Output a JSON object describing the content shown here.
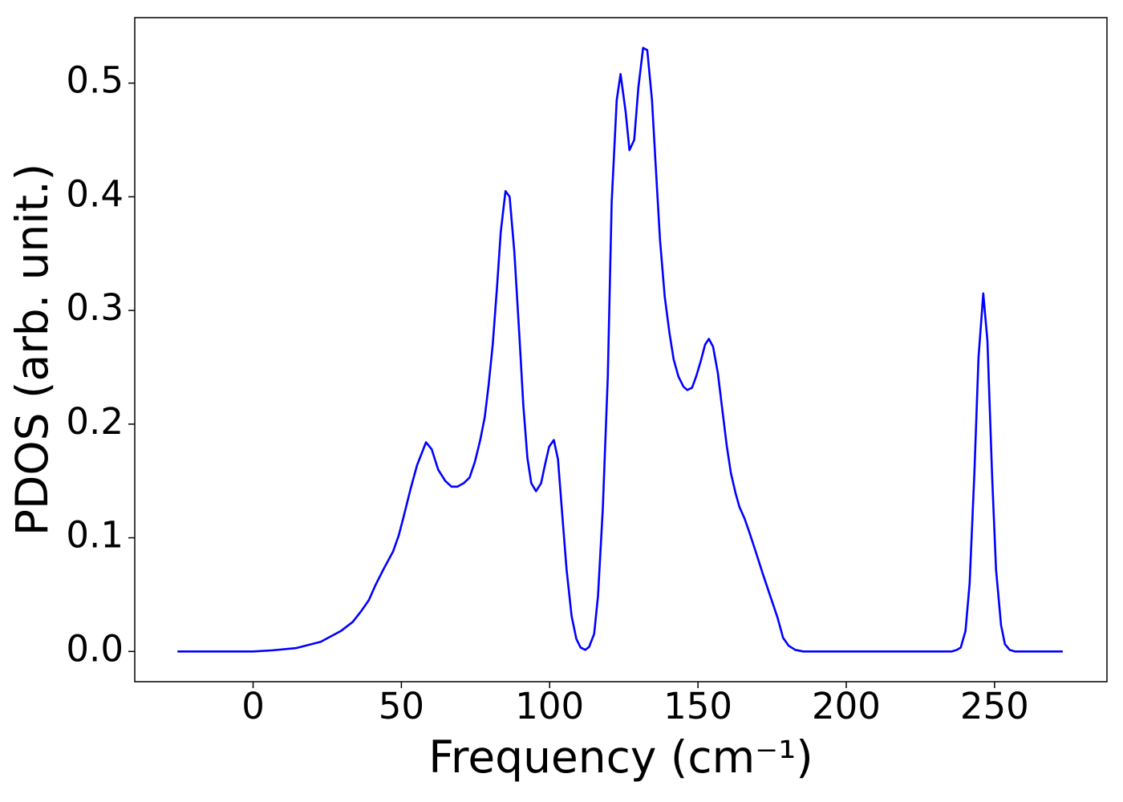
{
  "chart_data": {
    "type": "line",
    "xlabel": "Frequency (cm⁻¹)",
    "ylabel": "PDOS (arb. unit.)",
    "xlim": [
      -39.9,
      287.9
    ],
    "ylim": [
      -0.0266,
      0.5576
    ],
    "xticks": [
      0,
      50,
      100,
      150,
      200,
      250
    ],
    "yticks": [
      {
        "value": 0,
        "label": "0.0"
      },
      0.1,
      0.2,
      0.3,
      0.4,
      0.5
    ],
    "grid": false,
    "x": [
      -25.5,
      0,
      6.5,
      14.6,
      22.8,
      29.6,
      33.6,
      36.3,
      39.0,
      41.2,
      43.9,
      47.2,
      49.1,
      50.7,
      53.1,
      55.3,
      58.3,
      60.2,
      62.4,
      64.8,
      66.9,
      68.9,
      71.0,
      73.0,
      74.8,
      76.5,
      78.1,
      79.4,
      80.8,
      82.2,
      83.5,
      85.1,
      86.5,
      88.1,
      89.8,
      91.1,
      92.5,
      93.8,
      95.4,
      97.1,
      98.4,
      99.8,
      101.4,
      102.8,
      104.1,
      105.7,
      107.4,
      109.0,
      110.4,
      112.0,
      113.3,
      115.0,
      116.3,
      117.9,
      119.6,
      120.9,
      122.6,
      123.9,
      125.6,
      126.9,
      128.5,
      129.9,
      131.5,
      132.9,
      134.5,
      135.8,
      137.2,
      138.8,
      140.4,
      141.8,
      143.4,
      145.1,
      146.4,
      148.0,
      149.4,
      151.0,
      152.4,
      153.7,
      155.1,
      156.7,
      158.1,
      159.7,
      161.1,
      162.7,
      164.0,
      165.7,
      167.3,
      169.2,
      171.9,
      174.6,
      176.8,
      178.7,
      180.6,
      182.8,
      185.5,
      235.6,
      237.3,
      238.6,
      240.2,
      241.6,
      243.2,
      244.6,
      246.2,
      247.6,
      249.2,
      250.5,
      252.2,
      253.5,
      255.1,
      256.8,
      273.0
    ],
    "series": [
      {
        "name": "PDOS",
        "color": "#0000ff",
        "values": [
          0,
          0,
          0.001,
          0.003,
          0.0085,
          0.018,
          0.026,
          0.035,
          0.045,
          0.058,
          0.072,
          0.088,
          0.102,
          0.118,
          0.143,
          0.164,
          0.184,
          0.178,
          0.16,
          0.15,
          0.145,
          0.145,
          0.148,
          0.153,
          0.167,
          0.185,
          0.206,
          0.234,
          0.27,
          0.319,
          0.369,
          0.405,
          0.4,
          0.351,
          0.277,
          0.217,
          0.17,
          0.148,
          0.141,
          0.148,
          0.164,
          0.18,
          0.186,
          0.169,
          0.125,
          0.072,
          0.031,
          0.011,
          0.0035,
          0.0014,
          0.004,
          0.0155,
          0.049,
          0.125,
          0.242,
          0.395,
          0.485,
          0.508,
          0.475,
          0.441,
          0.45,
          0.496,
          0.531,
          0.529,
          0.485,
          0.425,
          0.362,
          0.312,
          0.28,
          0.257,
          0.242,
          0.233,
          0.23,
          0.232,
          0.242,
          0.256,
          0.27,
          0.275,
          0.268,
          0.245,
          0.215,
          0.181,
          0.157,
          0.139,
          0.127,
          0.117,
          0.105,
          0.09,
          0.068,
          0.047,
          0.03,
          0.012,
          0.005,
          0.0014,
          0,
          0,
          0.0014,
          0.0035,
          0.018,
          0.06,
          0.157,
          0.259,
          0.315,
          0.273,
          0.153,
          0.072,
          0.023,
          0.0064,
          0.0014,
          0,
          0
        ]
      }
    ]
  }
}
